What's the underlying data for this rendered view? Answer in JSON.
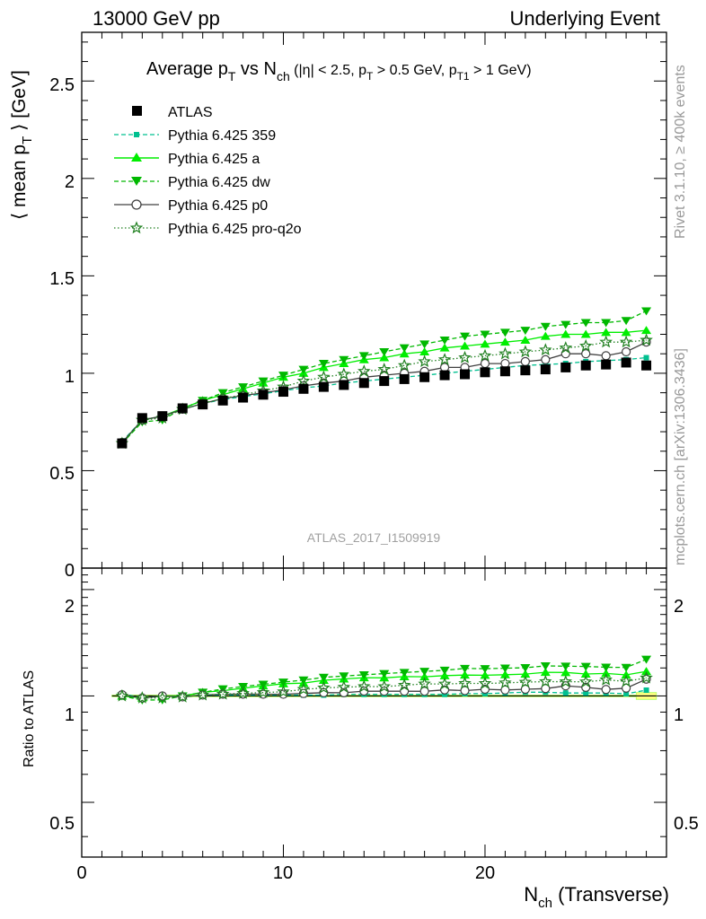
{
  "header": {
    "left": "13000 GeV pp",
    "right": "Underlying Event"
  },
  "side": {
    "top": "Rivet 3.1.10, ≥ 400k events",
    "bottom": "mcplots.cern.ch [arXiv:1306.3436]"
  },
  "colors": {
    "atlas": "#000000",
    "p359": "#00c090",
    "pa": "#00ee00",
    "pdw": "#00b800",
    "pp0": "#404040",
    "pq2o": "#208020",
    "band": "#ffff80",
    "bandEdge": "#b0ff60"
  },
  "chart_data": {
    "type": "line",
    "title": "Average p_T vs N_ch (|η| < 2.5, p_T > 0.5 GeV, p_T1 > 1 GeV)",
    "title_parts": {
      "main1": "Average p",
      "sub1": "T",
      "main2": " vs N",
      "sub2": "ch",
      "cut1": " (|η| < 2.5, p",
      "cutsub1": "T",
      "cut2": " > 0.5 GeV, p",
      "cutsub2": "T1",
      "cut3": " > 1 GeV)"
    },
    "analysis_label": "ATLAS_2017_I1509919",
    "ylabel_parts": {
      "pre": "⟨ mean p",
      "sub": "T",
      "post": " ⟩ [GeV]"
    },
    "ratio_ylabel": "Ratio to ATLAS",
    "xlabel_parts": {
      "pre": "N",
      "sub": "ch",
      "post": " (Transverse)"
    },
    "xlim": [
      0,
      29
    ],
    "ylim": [
      0,
      2.75
    ],
    "ratio_ylim": [
      0.35,
      2.3
    ],
    "x_ticks": [
      "0",
      "10",
      "20"
    ],
    "y_ticks": [
      "0.5",
      "1",
      "1.5",
      "2",
      "2.5"
    ],
    "y_tick_zero": "0",
    "ratio_ticks": [
      "0.5",
      "1",
      "2"
    ],
    "ratio_ticks_right": [
      "0.5",
      "1",
      "2"
    ],
    "x": [
      2,
      3,
      4,
      5,
      6,
      7,
      8,
      9,
      10,
      11,
      12,
      13,
      14,
      15,
      16,
      17,
      18,
      19,
      20,
      21,
      22,
      23,
      24,
      25,
      26,
      27,
      28
    ],
    "series": [
      {
        "name": "ATLAS",
        "key": "atlas",
        "style": "data",
        "values": [
          0.64,
          0.77,
          0.78,
          0.82,
          0.84,
          0.86,
          0.875,
          0.89,
          0.905,
          0.92,
          0.93,
          0.94,
          0.95,
          0.96,
          0.97,
          0.98,
          0.99,
          0.995,
          1.005,
          1.01,
          1.015,
          1.02,
          1.03,
          1.04,
          1.045,
          1.055,
          1.04
        ]
      },
      {
        "name": "Pythia 6.425 359",
        "key": "p359",
        "style": "square-dashed",
        "values": [
          0.65,
          0.76,
          0.78,
          0.815,
          0.845,
          0.865,
          0.88,
          0.895,
          0.91,
          0.925,
          0.935,
          0.95,
          0.96,
          0.97,
          0.98,
          0.99,
          1.0,
          1.01,
          1.02,
          1.03,
          1.04,
          1.045,
          1.05,
          1.06,
          1.065,
          1.07,
          1.08
        ]
      },
      {
        "name": "Pythia 6.425 a",
        "key": "pa",
        "style": "triangle-up-solid",
        "values": [
          0.64,
          0.76,
          0.78,
          0.82,
          0.86,
          0.89,
          0.92,
          0.95,
          0.98,
          1.0,
          1.03,
          1.05,
          1.07,
          1.08,
          1.1,
          1.11,
          1.13,
          1.14,
          1.15,
          1.16,
          1.17,
          1.19,
          1.2,
          1.2,
          1.21,
          1.21,
          1.22
        ]
      },
      {
        "name": "Pythia 6.425 dw",
        "key": "pdw",
        "style": "triangle-down-dashed",
        "values": [
          0.64,
          0.75,
          0.76,
          0.82,
          0.86,
          0.9,
          0.93,
          0.96,
          0.99,
          1.02,
          1.05,
          1.07,
          1.09,
          1.11,
          1.13,
          1.15,
          1.17,
          1.19,
          1.2,
          1.21,
          1.22,
          1.24,
          1.25,
          1.26,
          1.26,
          1.27,
          1.32
        ]
      },
      {
        "name": "Pythia 6.425 p0",
        "key": "pp0",
        "style": "circle-solid",
        "values": [
          0.645,
          0.76,
          0.78,
          0.815,
          0.845,
          0.87,
          0.885,
          0.9,
          0.915,
          0.935,
          0.95,
          0.96,
          0.98,
          0.99,
          1.0,
          1.01,
          1.03,
          1.03,
          1.05,
          1.05,
          1.06,
          1.07,
          1.1,
          1.1,
          1.09,
          1.11,
          1.16
        ]
      },
      {
        "name": "Pythia 6.425 pro-q2o",
        "key": "pq2o",
        "style": "star-dotted",
        "values": [
          0.64,
          0.76,
          0.77,
          0.815,
          0.845,
          0.87,
          0.89,
          0.91,
          0.93,
          0.96,
          0.98,
          0.995,
          1.01,
          1.02,
          1.04,
          1.06,
          1.07,
          1.08,
          1.09,
          1.1,
          1.11,
          1.12,
          1.13,
          1.14,
          1.16,
          1.16,
          1.17
        ]
      }
    ]
  }
}
